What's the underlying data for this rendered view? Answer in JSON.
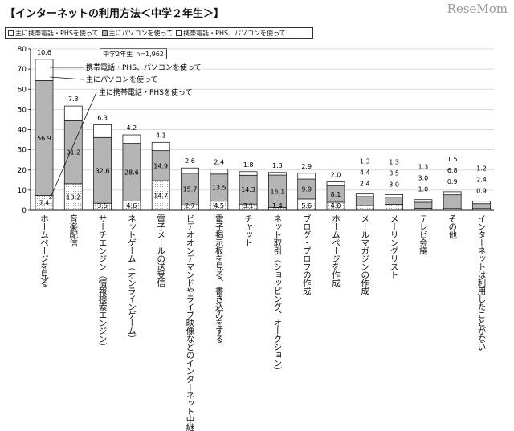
{
  "title": "【インターネットの利用方法＜中学２年生＞】",
  "brand": "ReseMom",
  "legend": {
    "mobile": "主に携帯電話・PHSを使って",
    "pc": "主にパソコンを使って",
    "both": "携帯電話・PHS、パソコンを使って"
  },
  "note": {
    "grade": "中学2年生",
    "n": "n=1,962"
  },
  "annotations": {
    "both": "携帯電話・PHS、パソコンを使って",
    "pc": "主にパソコンを使って",
    "mobile": "主に携帯電話・PHSを使って"
  },
  "colors": {
    "mobile": "#ffffff",
    "pc": "#b4b4b4",
    "both": "#ffffff",
    "grid": "#cfcfcf"
  },
  "chart_data": {
    "type": "bar",
    "stacked": true,
    "title": "インターネットの利用方法＜中学２年生＞",
    "ylim": [
      0,
      80
    ],
    "yticks": [
      "0",
      "10",
      "20",
      "30",
      "40",
      "50",
      "60",
      "70",
      "80"
    ],
    "categories": [
      "ホームページを見る",
      "音楽配信",
      "サーチエンジン（情報検索エンジン）",
      "ネットゲーム（オンラインゲーム）",
      "電子メールの送受信",
      "ビデオオンデマンドやライブ映像などのインターネット中継",
      "電子掲示板を見る、書き込みをする",
      "チャット",
      "ネット取引（ショッピング、オークション）",
      "ブログ・プロフの作成",
      "ホームページを作成",
      "メールマガジンの作成",
      "メーリングリスト",
      "テレビ会議",
      "その他",
      "インターネットは利用したことがない"
    ],
    "series": [
      {
        "name": "主に携帯電話・PHSを使って",
        "values": [
          7.4,
          13.2,
          3.5,
          4.6,
          14.7,
          2.7,
          4.5,
          3.1,
          1.4,
          5.6,
          4.0,
          2.4,
          3.0,
          1.0,
          0.9,
          0.9
        ]
      },
      {
        "name": "主にパソコンを使って",
        "values": [
          56.9,
          31.2,
          32.6,
          28.6,
          14.9,
          15.7,
          13.5,
          14.3,
          16.1,
          9.9,
          8.1,
          4.4,
          3.5,
          3.0,
          6.8,
          2.4
        ]
      },
      {
        "name": "携帯電話・PHS、パソコンを使って",
        "values": [
          10.6,
          7.3,
          6.3,
          4.2,
          4.1,
          2.6,
          2.4,
          1.8,
          1.3,
          2.9,
          2.0,
          1.3,
          1.3,
          1.3,
          1.5,
          1.2
        ]
      }
    ],
    "labels": {
      "mobile": [
        "7.4",
        "13.2",
        "3.5",
        "4.6",
        "14.7",
        "2.7",
        "4.5",
        "3.1",
        "1.4",
        "5.6",
        "4.0",
        "2.4",
        "3.0",
        "1.0",
        "0.9",
        "0.9"
      ],
      "pc": [
        "56.9",
        "31.2",
        "32.6",
        "28.6",
        "14.9",
        "15.7",
        "13.5",
        "14.3",
        "16.1",
        "9.9",
        "8.1",
        "4.4",
        "3.5",
        "3.0",
        "6.8",
        "2.4"
      ],
      "both": [
        "10.6",
        "7.3",
        "6.3",
        "4.2",
        "4.1",
        "2.6",
        "2.4",
        "1.8",
        "1.3",
        "2.9",
        "2.0",
        "1.3",
        "1.3",
        "1.3",
        "1.5",
        "1.2"
      ]
    }
  }
}
